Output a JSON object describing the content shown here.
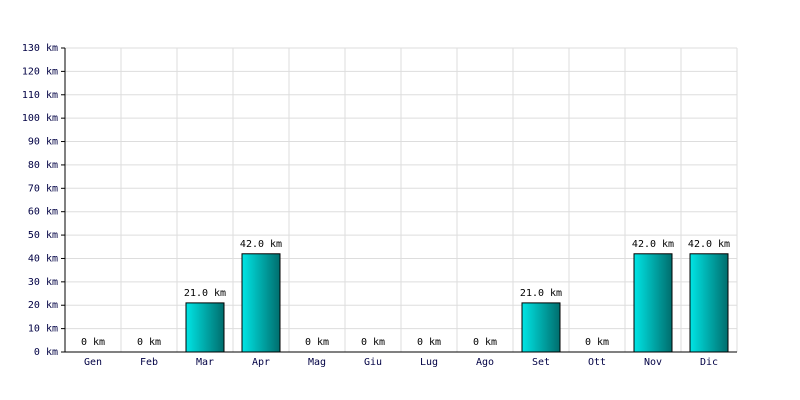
{
  "chart_data": {
    "type": "bar",
    "categories": [
      "Gen",
      "Feb",
      "Mar",
      "Apr",
      "Mag",
      "Giu",
      "Lug",
      "Ago",
      "Set",
      "Ott",
      "Nov",
      "Dic"
    ],
    "values": [
      0,
      0,
      21.0,
      42.0,
      0,
      0,
      0,
      0,
      21.0,
      0,
      42.0,
      42.0
    ],
    "value_labels": [
      "0 km",
      "0 km",
      "21.0 km",
      "42.0 km",
      "0 km",
      "0 km",
      "0 km",
      "0 km",
      "21.0 km",
      "0 km",
      "42.0 km",
      "42.0 km"
    ],
    "color": "#00e5e5",
    "ylim": [
      0,
      130
    ],
    "yticks": [
      {
        "value": 0,
        "label": "0 km"
      },
      {
        "value": 10,
        "label": "10 km"
      },
      {
        "value": 20,
        "label": "20 km"
      },
      {
        "value": 30,
        "label": "30 km"
      },
      {
        "value": 40,
        "label": "40 km"
      },
      {
        "value": 50,
        "label": "50 km"
      },
      {
        "value": 60,
        "label": "60 km"
      },
      {
        "value": 70,
        "label": "70 km"
      },
      {
        "value": 80,
        "label": "80 km"
      },
      {
        "value": 90,
        "label": "90 km"
      },
      {
        "value": 100,
        "label": "100 km"
      },
      {
        "value": 110,
        "label": "110 km"
      },
      {
        "value": 120,
        "label": "120 km"
      },
      {
        "value": 130,
        "label": "130 km"
      }
    ],
    "grid": true
  }
}
